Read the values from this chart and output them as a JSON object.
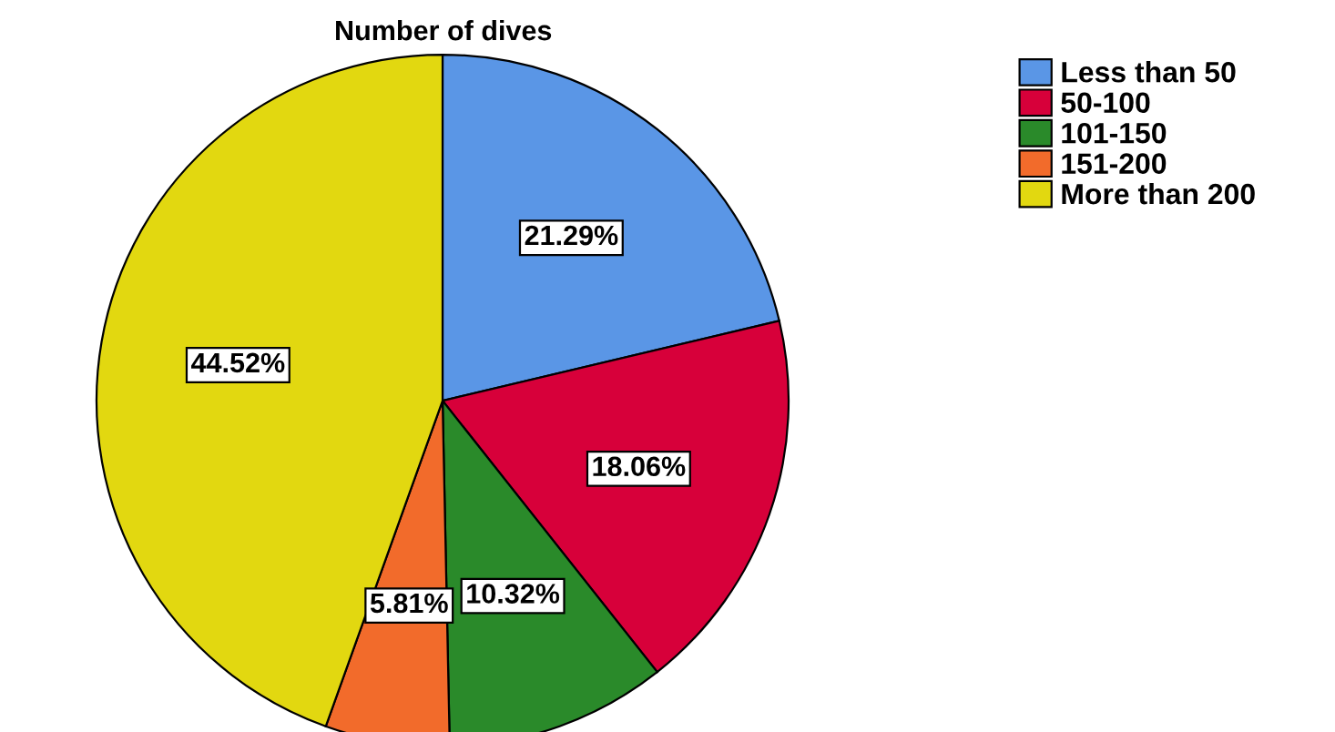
{
  "chart_data": {
    "type": "pie",
    "title": "Number of dives",
    "categories": [
      "Less than 50",
      "50-100",
      "101-150",
      "151-200",
      "More than 200"
    ],
    "values": [
      21.29,
      18.06,
      10.32,
      5.81,
      44.52
    ],
    "colors": [
      "#5a96e6",
      "#d7003a",
      "#2a8a2a",
      "#f26b2b",
      "#e2d810"
    ],
    "value_labels": [
      "21.29%",
      "18.06%",
      "10.32%",
      "5.81%",
      "44.52%"
    ],
    "legend": "top right"
  }
}
